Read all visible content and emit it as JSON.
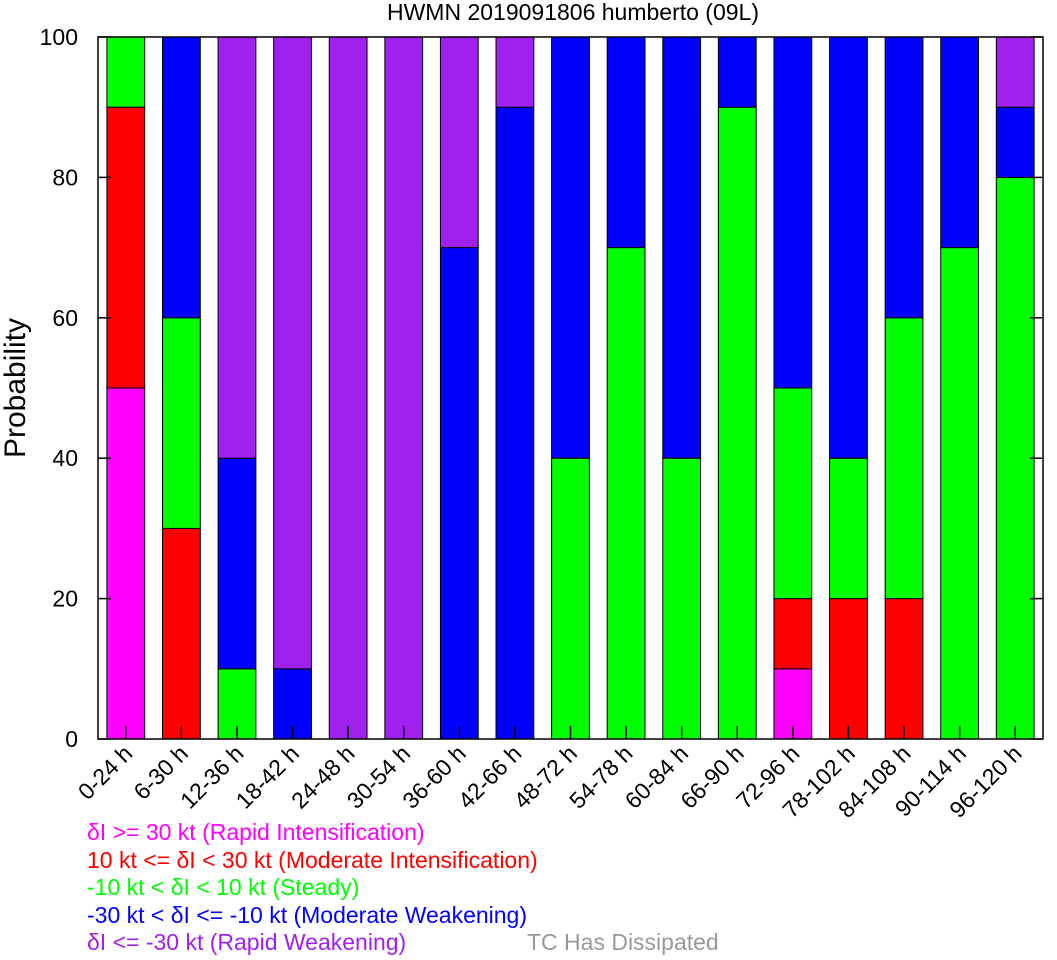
{
  "chart_data": {
    "type": "bar",
    "stacked": true,
    "title": "HWMN 2019091806 humberto (09L)",
    "xlabel": "",
    "ylabel": "Probability",
    "ylim": [
      0,
      100
    ],
    "yticks": [
      0,
      20,
      40,
      60,
      80,
      100
    ],
    "categories": [
      "0-24 h",
      "6-30 h",
      "12-36 h",
      "18-42 h",
      "24-48 h",
      "30-54 h",
      "36-60 h",
      "42-66 h",
      "48-72 h",
      "54-78 h",
      "60-84 h",
      "66-90 h",
      "72-96 h",
      "78-102 h",
      "84-108 h",
      "90-114 h",
      "96-120 h"
    ],
    "series": [
      {
        "name": "δI >= 30 kt (Rapid Intensification)",
        "color": "#ff00ff",
        "values": [
          50,
          0,
          0,
          0,
          0,
          0,
          0,
          0,
          0,
          0,
          0,
          0,
          10,
          0,
          0,
          0,
          0
        ]
      },
      {
        "name": "10 kt <= δI < 30 kt (Moderate Intensification)",
        "color": "#ff0000",
        "values": [
          40,
          30,
          0,
          0,
          0,
          0,
          0,
          0,
          0,
          0,
          0,
          0,
          10,
          20,
          20,
          0,
          0
        ]
      },
      {
        "name": "-10 kt < δI < 10 kt (Steady)",
        "color": "#00ff00",
        "values": [
          10,
          30,
          10,
          0,
          0,
          0,
          0,
          0,
          40,
          70,
          40,
          90,
          30,
          20,
          40,
          70,
          80
        ]
      },
      {
        "name": "-30 kt < δI <= -10 kt (Moderate Weakening)",
        "color": "#0000ff",
        "values": [
          0,
          40,
          30,
          10,
          0,
          0,
          70,
          90,
          60,
          30,
          60,
          10,
          50,
          60,
          40,
          30,
          10
        ]
      },
      {
        "name": "δI <= -30 kt (Rapid Weakening)",
        "color": "#a020f0",
        "values": [
          0,
          0,
          60,
          90,
          100,
          100,
          30,
          10,
          0,
          0,
          0,
          0,
          0,
          0,
          0,
          0,
          10
        ]
      }
    ],
    "grid": false,
    "legend_placement": "bottom-left"
  },
  "legend": {
    "dissipated_label": "TC Has Dissipated",
    "dissipated_color": "#999999"
  }
}
